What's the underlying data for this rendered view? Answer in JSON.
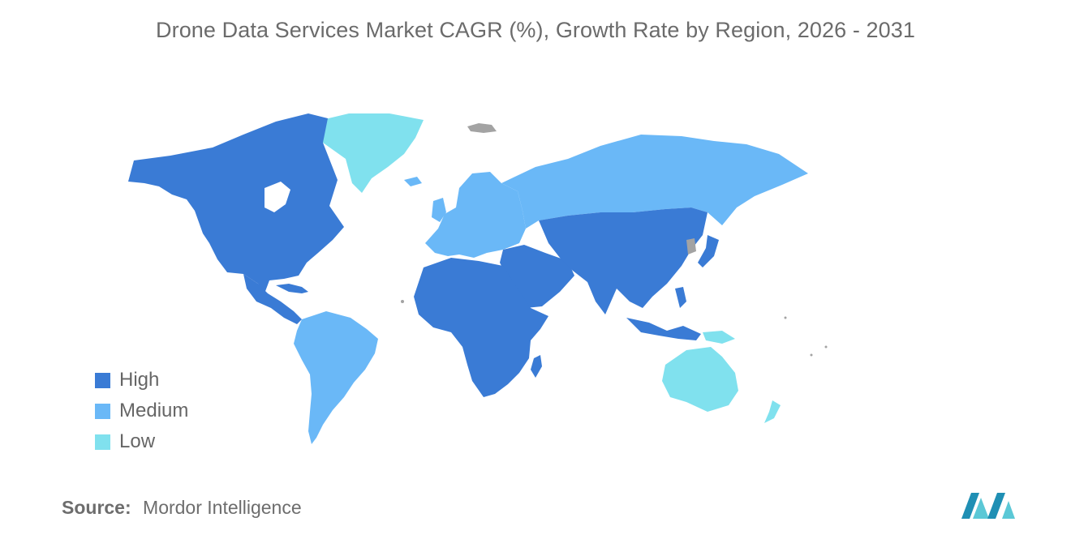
{
  "title": "Drone Data Services Market CAGR (%), Growth Rate by Region, 2026 - 2031",
  "legend": {
    "items": [
      {
        "label": "High",
        "color": "#3a7bd5"
      },
      {
        "label": "Medium",
        "color": "#6ab8f7"
      },
      {
        "label": "Low",
        "color": "#80e1ee"
      }
    ]
  },
  "map": {
    "no_data_color": "#a3a3a3",
    "regions": [
      {
        "region": "North America",
        "level": "High"
      },
      {
        "region": "Central America",
        "level": "High"
      },
      {
        "region": "Greenland",
        "level": "Low"
      },
      {
        "region": "South America",
        "level": "Medium"
      },
      {
        "region": "Europe",
        "level": "Medium"
      },
      {
        "region": "Russia",
        "level": "Medium"
      },
      {
        "region": "Africa",
        "level": "High"
      },
      {
        "region": "Middle East",
        "level": "High"
      },
      {
        "region": "Asia",
        "level": "High"
      },
      {
        "region": "Australia and New Zealand",
        "level": "Low"
      }
    ]
  },
  "source": {
    "label": "Source:",
    "value": "Mordor Intelligence"
  },
  "logo": {
    "icon": "mordor-intelligence-logo"
  }
}
